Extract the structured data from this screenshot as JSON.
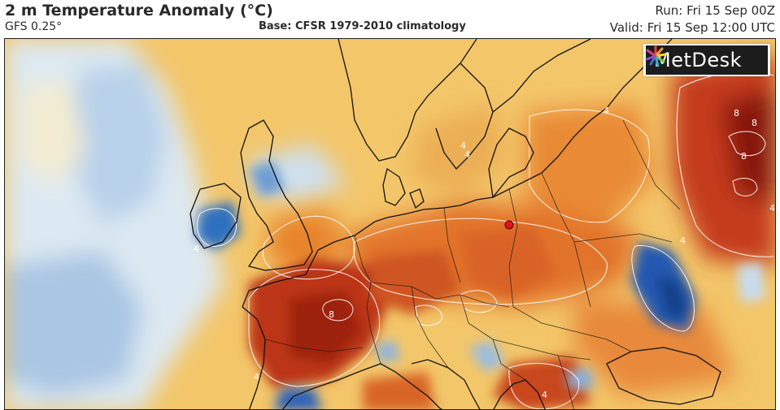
{
  "header": {
    "title": "2 m Temperature Anomaly (°C)",
    "model": "GFS 0.25°",
    "base": "Base: CFSR 1979-2010 climatology",
    "run": "Run: Fri 15 Sep 00Z",
    "valid": "Valid: Fri 15 Sep 12:00 UTC"
  },
  "logo": {
    "text": "MetDesk"
  },
  "map": {
    "region": "Europe",
    "variable": "2 m temperature anomaly",
    "units": "°C",
    "contour_labels": [
      "4",
      "4",
      "4",
      "8",
      "8",
      "8",
      "4",
      "4",
      "4",
      "4",
      "8",
      "4"
    ],
    "marker": {
      "label": "point of interest",
      "color": "#e0141e"
    },
    "colors": {
      "strong_cold": "#1f5fb8",
      "cold": "#a9c9ea",
      "near_zero": "#eef3f6",
      "mild_warm": "#f6d27a",
      "warm": "#f0a640",
      "hot": "#e0661e",
      "very_hot": "#b52a14",
      "extreme": "#7a0a08"
    }
  }
}
